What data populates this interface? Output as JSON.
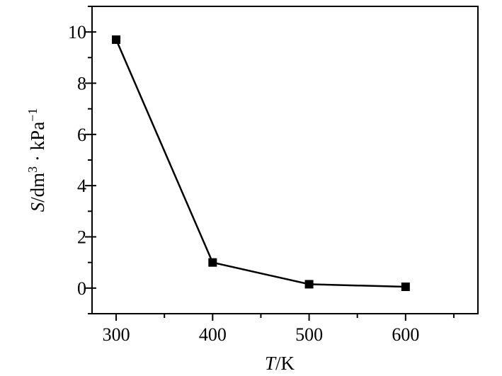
{
  "chart_data": {
    "type": "line",
    "x": [
      300,
      400,
      500,
      600
    ],
    "series": [
      {
        "values": [
          9.7,
          1.0,
          0.15,
          0.05
        ]
      }
    ],
    "xlim": [
      275,
      675
    ],
    "ylim": [
      -1,
      11
    ],
    "x_ticks": [
      300,
      400,
      500,
      600
    ],
    "y_ticks": [
      0,
      2,
      4,
      6,
      8,
      10
    ],
    "xlabel": {
      "italic": "T",
      "rest": "/K"
    },
    "ylabel": {
      "s": "S",
      "unit": "/dm",
      "sup1": "3",
      "dot": " · kPa",
      "sup2": "−1"
    },
    "marker": "square",
    "grid": false,
    "legend": "none",
    "line_color": "#000000"
  }
}
